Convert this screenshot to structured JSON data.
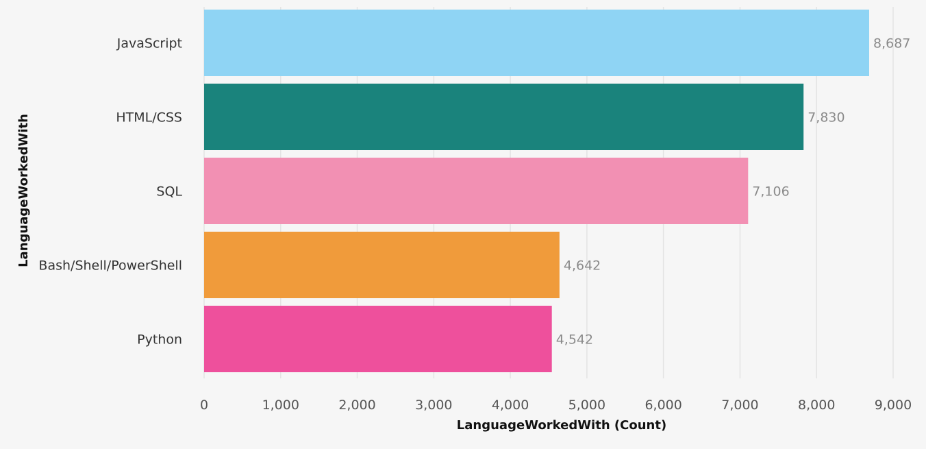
{
  "chart_data": {
    "type": "bar",
    "orientation": "horizontal",
    "title": "",
    "xlabel": "LanguageWorkedWith (Count)",
    "ylabel": "LanguageWorkedWith",
    "categories": [
      "JavaScript",
      "HTML/CSS",
      "SQL",
      "Bash/Shell/PowerShell",
      "Python"
    ],
    "values": [
      8687,
      7830,
      7106,
      4642,
      4542
    ],
    "value_labels": [
      "8,687",
      "7,830",
      "7,106",
      "4,642",
      "4,542"
    ],
    "colors": [
      "#8fd4f4",
      "#1a837c",
      "#f290b3",
      "#f09b3b",
      "#ee509c"
    ],
    "xlim": [
      0,
      9000
    ],
    "xticks": [
      0,
      1000,
      2000,
      3000,
      4000,
      5000,
      6000,
      7000,
      8000,
      9000
    ],
    "xtick_labels": [
      "0",
      "1,000",
      "2,000",
      "3,000",
      "4,000",
      "5,000",
      "6,000",
      "7,000",
      "8,000",
      "9,000"
    ],
    "grid": "vertical",
    "legend": "none",
    "background": "#f6f6f6"
  }
}
